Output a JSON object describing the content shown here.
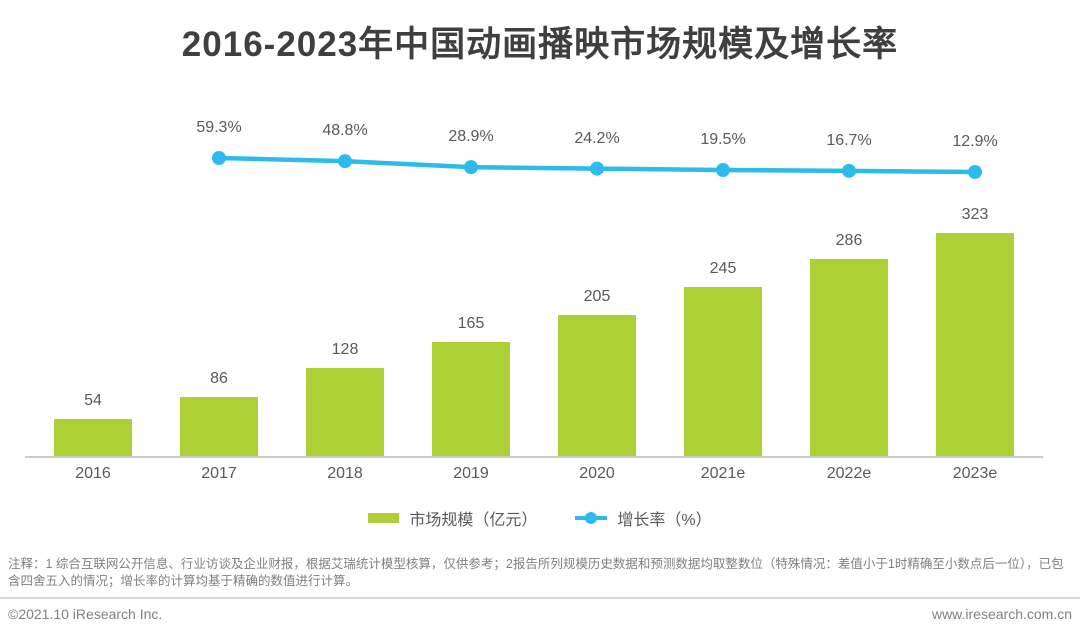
{
  "title": "2016-2023年中国动画播映市场规模及增长率",
  "legend": {
    "bar_label": "市场规模（亿元）",
    "line_label": "增长率（%）"
  },
  "note": "注释：1 综合互联网公开信息、行业访谈及企业财报，根据艾瑞统计模型核算，仅供参考；2报告所列规模历史数据和预测数据均取整数位（特殊情况：差值小于1时精确至小数点后一位），已包含四舍五入的情况；增长率的计算均基于精确的数值进行计算。",
  "footer": {
    "left": "©2021.10 iResearch Inc.",
    "right": "www.iresearch.com.cn"
  },
  "colors": {
    "bar": "#ACD036",
    "line": "#2CBBEB",
    "title": "#3F3F3F",
    "label": "#595959",
    "muted": "#808080",
    "axis": "#CCCCCC"
  },
  "chart_data": {
    "type": "bar",
    "title": "2016-2023年中国动画播映市场规模及增长率",
    "categories": [
      "2016",
      "2017",
      "2018",
      "2019",
      "2020",
      "2021e",
      "2022e",
      "2023e"
    ],
    "series": [
      {
        "name": "市场规模（亿元）",
        "type": "bar",
        "categories": [
          "2016",
          "2017",
          "2018",
          "2019",
          "2020",
          "2021e",
          "2022e",
          "2023e"
        ],
        "values": [
          54,
          86,
          128,
          165,
          205,
          245,
          286,
          323
        ]
      },
      {
        "name": "增长率（%）",
        "type": "line",
        "categories": [
          "2017",
          "2018",
          "2019",
          "2020",
          "2021e",
          "2022e",
          "2023e"
        ],
        "values": [
          59.3,
          48.8,
          28.9,
          24.2,
          19.5,
          16.7,
          12.9
        ]
      }
    ],
    "data_labels": true,
    "grid": false,
    "legend_position": "bottom",
    "xlabel": "",
    "ylabel": ""
  }
}
